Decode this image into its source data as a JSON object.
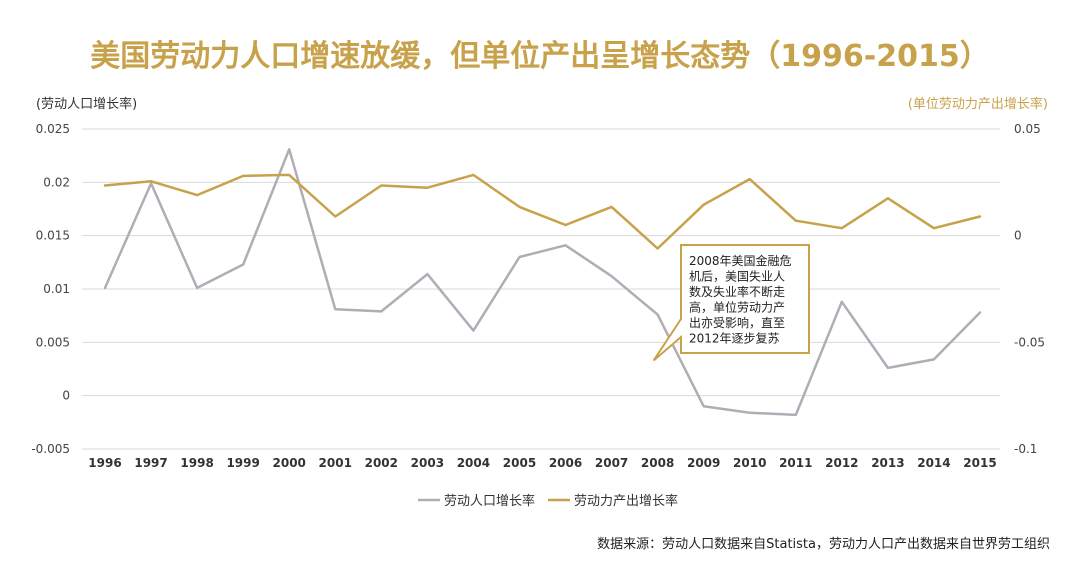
{
  "chart_data": {
    "type": "line",
    "title": "美国劳动力人口增速放缓，但单位产出呈增长态势（1996-2015）",
    "ylabel_left": "(劳动人口增长率)",
    "ylabel_right": "(单位劳动力产出增长率)",
    "x": [
      "1996",
      "1997",
      "1998",
      "1999",
      "2000",
      "2001",
      "2002",
      "2003",
      "2004",
      "2005",
      "2006",
      "2007",
      "2008",
      "2009",
      "2010",
      "2011",
      "2012",
      "2013",
      "2014",
      "2015"
    ],
    "ylim_left": [
      -0.005,
      0.025
    ],
    "ylim_right": [
      -0.1,
      0.05
    ],
    "yticks_left": [
      "0.025",
      "0.02",
      "0.015",
      "0.01",
      "0.005",
      "0",
      "-0.005"
    ],
    "yticks_right": [
      "0.05",
      "0",
      "-0.05",
      "-0.1"
    ],
    "grid": true,
    "legend_position": "bottom",
    "series": [
      {
        "name": "劳动人口增长率",
        "axis": "left",
        "color": "#b1adb6",
        "values": [
          0.0101,
          0.0199,
          0.0101,
          0.0123,
          0.0231,
          0.0081,
          0.0079,
          0.0114,
          0.0061,
          0.013,
          0.0141,
          0.0112,
          0.0076,
          -0.001,
          -0.0016,
          -0.0018,
          0.0088,
          0.0026,
          0.0034,
          0.0078
        ]
      },
      {
        "name": "劳动力产出增长率",
        "axis": "right",
        "color": "#c8a24a",
        "values": [
          0.0235,
          0.0255,
          0.019,
          0.028,
          0.0285,
          0.009,
          0.0235,
          0.0225,
          0.0285,
          0.0135,
          0.005,
          0.0135,
          -0.006,
          0.0145,
          0.0265,
          0.007,
          0.0035,
          0.0175,
          0.0035,
          0.009
        ]
      }
    ],
    "annotation": {
      "lines": [
        "2008年美国金融危",
        "机后，美国失业人",
        "数及失业率不断走",
        "高，单位劳动力产",
        "出亦受影响，直至",
        "2012年逐步复苏"
      ],
      "target_year": "2008"
    },
    "source": "数据来源：劳动人口数据来自Statista，劳动力人口产出数据来自世界劳工组织"
  }
}
